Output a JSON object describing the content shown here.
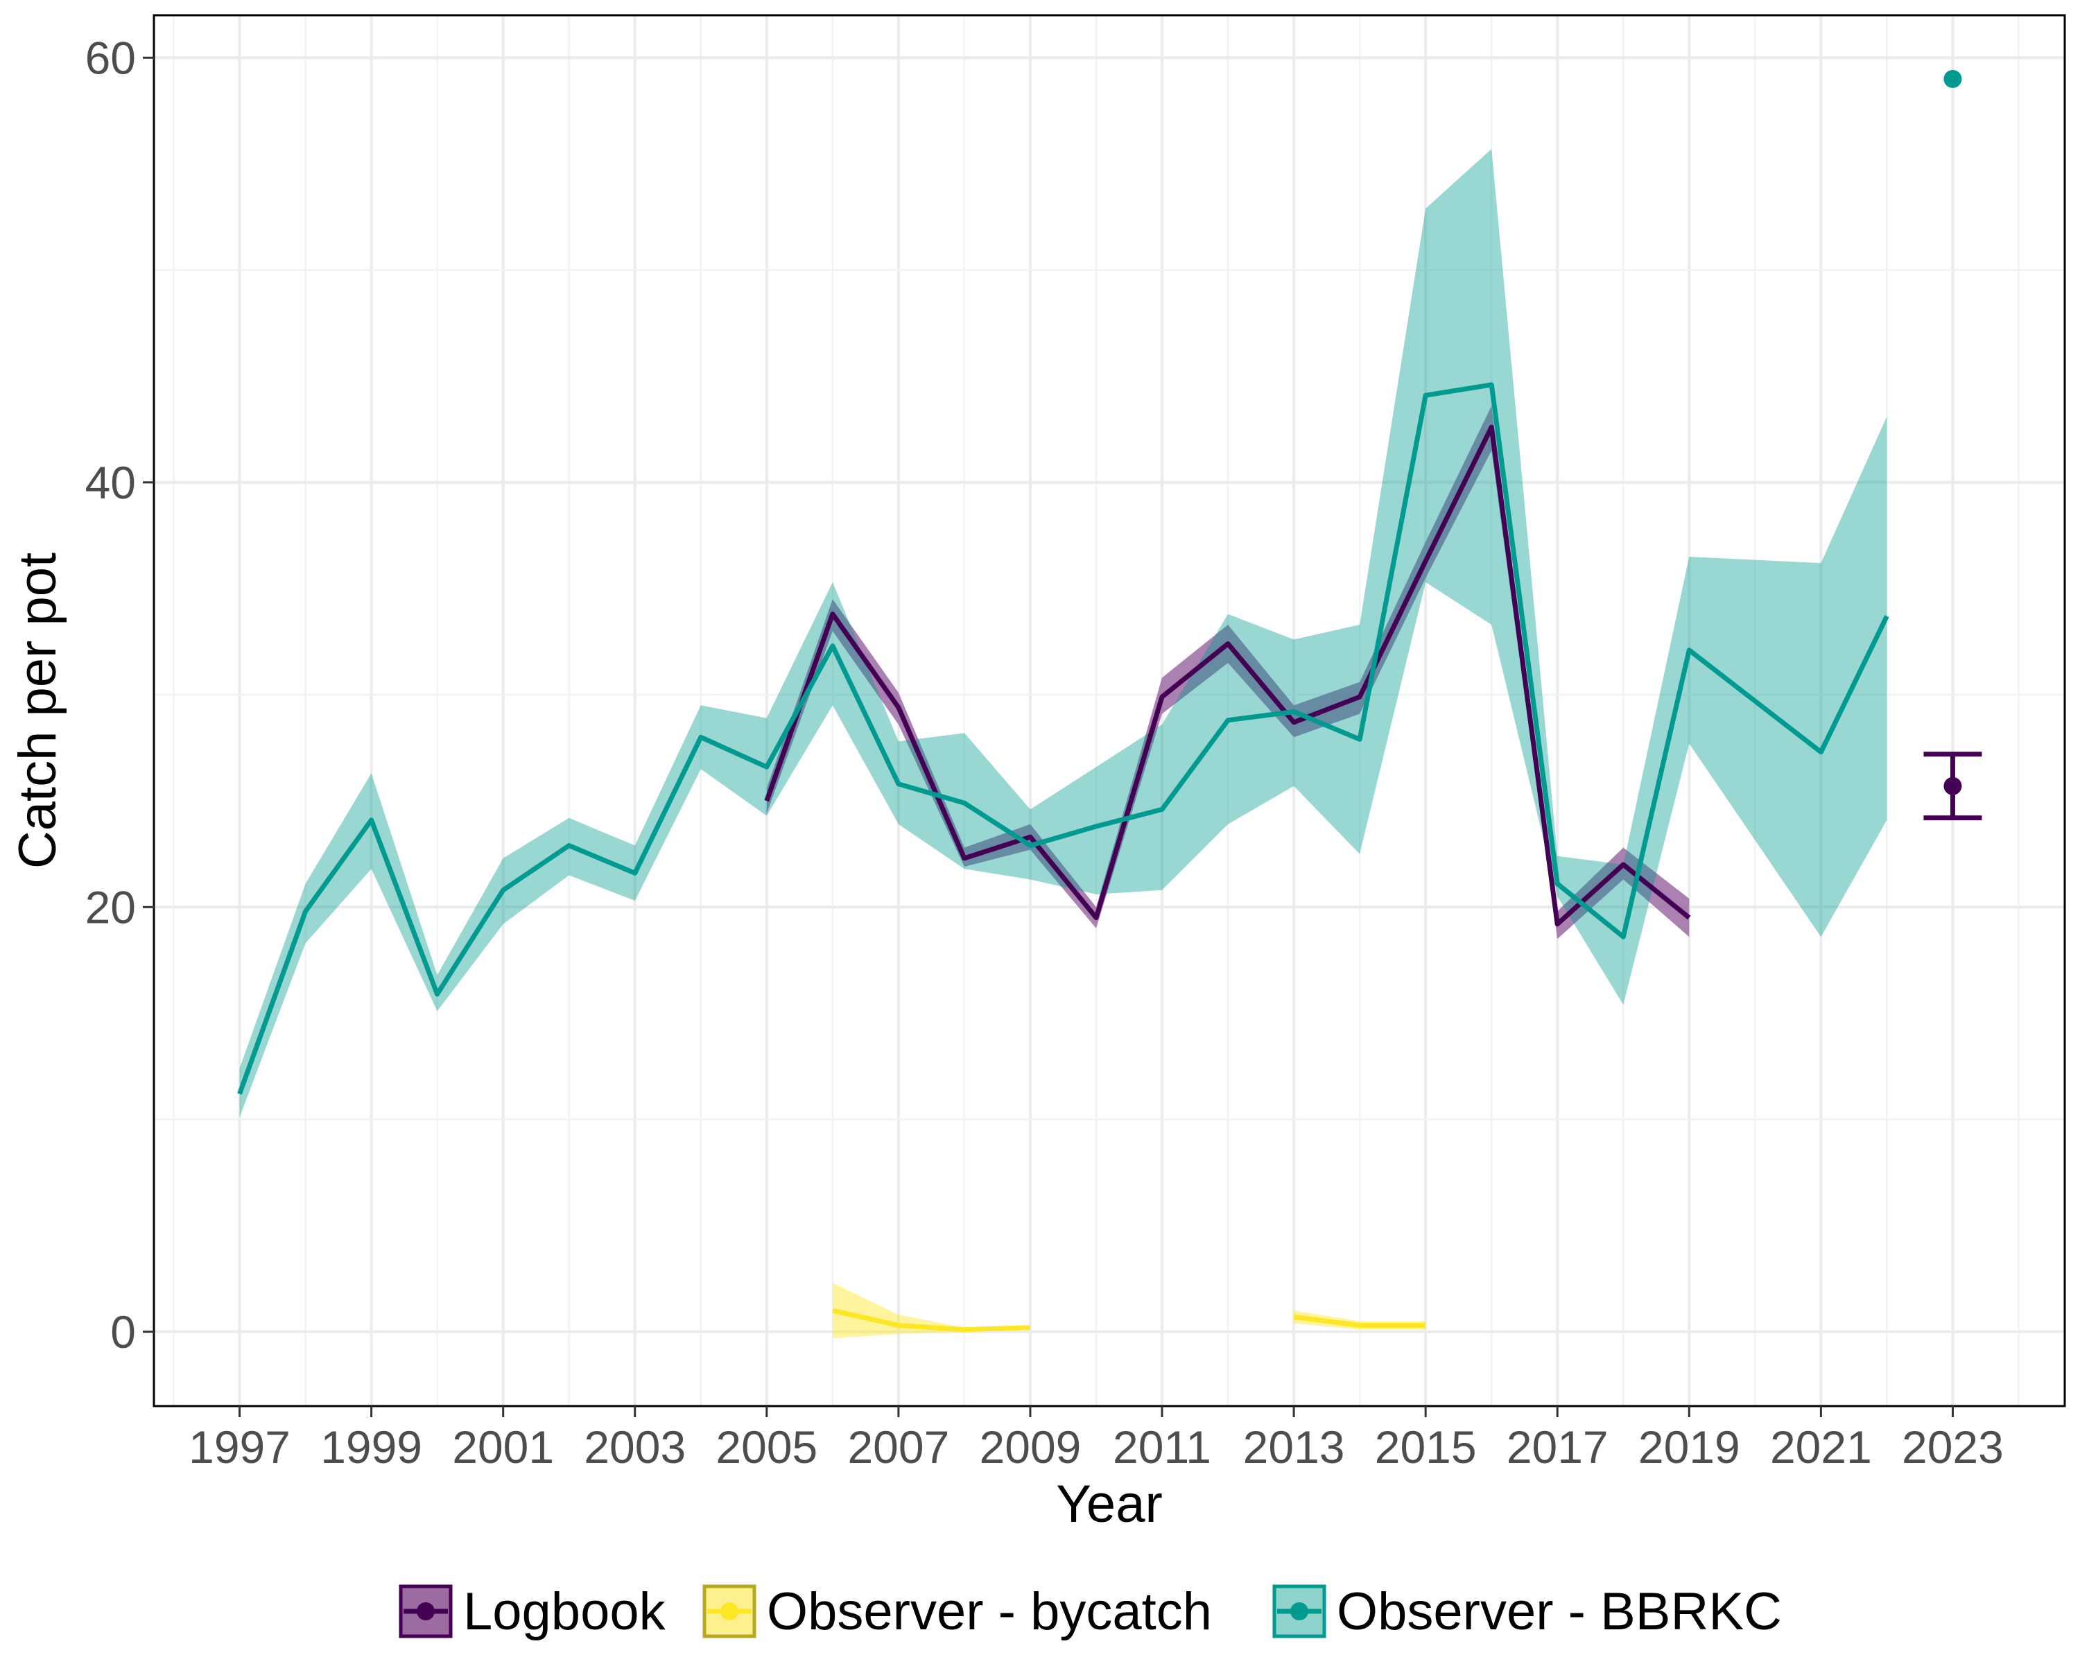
{
  "chart_data": {
    "type": "line",
    "title": "",
    "xlabel": "Year",
    "ylabel": "Catch per pot",
    "xlim": [
      1995.7,
      2024.7
    ],
    "ylim": [
      -3.5,
      62
    ],
    "x_ticks": [
      1997,
      1999,
      2001,
      2003,
      2005,
      2007,
      2009,
      2011,
      2013,
      2015,
      2017,
      2019,
      2021,
      2023
    ],
    "x_tick_labels": [
      "1997",
      "1999",
      "2001",
      "2003",
      "2005",
      "2007",
      "2009",
      "2011",
      "2013",
      "2015",
      "2017",
      "2019",
      "2021",
      "2023"
    ],
    "y_ticks": [
      0,
      20,
      40,
      60
    ],
    "y_tick_labels": [
      "0",
      "20",
      "40",
      "60"
    ],
    "grid": true,
    "legend_position": "bottom",
    "series": [
      {
        "name": "Observer - BBRKC",
        "color": "#009a91",
        "x": [
          1997,
          1998,
          1999,
          2000,
          2001,
          2002,
          2003,
          2004,
          2005,
          2006,
          2007,
          2008,
          2009,
          2010,
          2011,
          2012,
          2013,
          2014,
          2015,
          2016,
          2017,
          2018,
          2019,
          2021,
          2022
        ],
        "y": [
          11.2,
          19.8,
          24.1,
          15.9,
          20.8,
          22.9,
          21.6,
          28.0,
          26.6,
          32.3,
          25.8,
          24.9,
          22.9,
          23.8,
          24.6,
          28.8,
          29.2,
          27.9,
          44.1,
          44.6,
          21.1,
          18.6,
          32.1,
          27.3,
          33.7
        ],
        "lower": [
          10.1,
          18.3,
          21.8,
          15.1,
          19.2,
          21.5,
          20.3,
          26.5,
          24.3,
          29.5,
          23.9,
          21.8,
          21.3,
          20.6,
          20.8,
          23.9,
          25.7,
          22.5,
          35.3,
          33.3,
          20.5,
          15.4,
          27.7,
          18.6,
          24.1
        ],
        "upper": [
          12.4,
          21.1,
          26.3,
          16.8,
          22.3,
          24.2,
          22.9,
          29.5,
          28.9,
          35.3,
          27.8,
          28.2,
          24.6,
          26.6,
          28.6,
          33.8,
          32.6,
          33.3,
          52.9,
          55.7,
          22.4,
          22.0,
          36.5,
          36.2,
          43.1
        ],
        "extra_points": [
          {
            "x": 2023,
            "y": 59.0
          }
        ]
      },
      {
        "name": "Logbook",
        "color": "#440154",
        "fill": "#9b6ba2",
        "x": [
          2005,
          2006,
          2007,
          2008,
          2009,
          2010,
          2011,
          2012,
          2013,
          2014,
          2015,
          2016,
          2017,
          2018,
          2019
        ],
        "y": [
          25.0,
          33.8,
          29.4,
          22.3,
          23.3,
          19.5,
          29.9,
          32.4,
          28.7,
          29.9,
          36.3,
          42.6,
          19.2,
          22.0,
          19.5
        ],
        "lower": [
          24.4,
          33.0,
          28.6,
          21.9,
          22.7,
          19.0,
          29.1,
          31.5,
          28.0,
          29.1,
          35.5,
          41.5,
          18.5,
          21.3,
          18.6
        ],
        "upper": [
          25.6,
          34.5,
          30.1,
          22.8,
          23.9,
          20.0,
          30.8,
          33.3,
          29.5,
          30.6,
          37.2,
          43.6,
          19.8,
          22.8,
          20.4
        ],
        "extra_points": [
          {
            "x": 2023,
            "y": 25.7,
            "lower": 24.2,
            "upper": 27.2
          }
        ]
      },
      {
        "name": "Observer - bycatch",
        "color": "#fde725",
        "segments": [
          {
            "x": [
              2006,
              2007,
              2008,
              2009
            ],
            "y": [
              1.0,
              0.3,
              0.1,
              0.2
            ],
            "lower": [
              -0.3,
              -0.1,
              0.0,
              0.1
            ],
            "upper": [
              2.3,
              0.8,
              0.2,
              0.3
            ]
          },
          {
            "x": [
              2013,
              2014,
              2015
            ],
            "y": [
              0.7,
              0.3,
              0.3
            ],
            "lower": [
              0.4,
              0.1,
              0.1
            ],
            "upper": [
              1.0,
              0.5,
              0.5
            ]
          }
        ]
      }
    ],
    "legend": [
      {
        "name": "Logbook",
        "color": "#440154",
        "fill": "#9b6ba2"
      },
      {
        "name": "Observer - bycatch",
        "color": "#fde725",
        "fill": "#fdf08f"
      },
      {
        "name": "Observer - BBRKC",
        "color": "#009a91",
        "fill": "#8fd3cd"
      }
    ]
  }
}
